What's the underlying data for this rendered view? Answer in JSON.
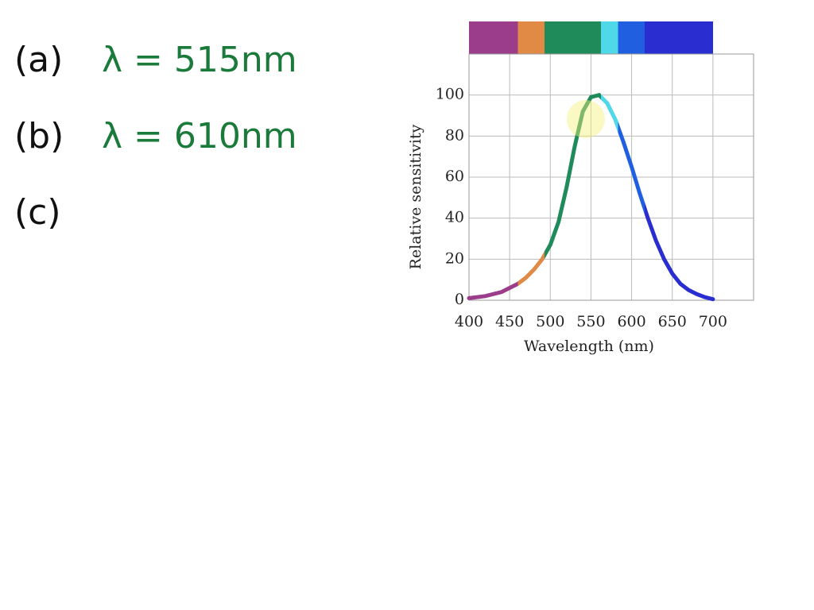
{
  "notes": [
    {
      "label": "(a)",
      "text": "λ = 515nm"
    },
    {
      "label": "(b)",
      "text": "λ = 610nm"
    },
    {
      "label": "(c)"
    }
  ],
  "chart_data": {
    "type": "line",
    "x_label": "Wavelength (nm)",
    "y_label": "Relative sensitivity",
    "x": [
      400,
      420,
      440,
      460,
      470,
      480,
      490,
      500,
      510,
      520,
      530,
      540,
      550,
      560,
      570,
      580,
      590,
      600,
      610,
      620,
      630,
      640,
      650,
      660,
      670,
      680,
      690,
      700
    ],
    "values": [
      1,
      2,
      4,
      8,
      11,
      15,
      20,
      27,
      38,
      55,
      75,
      92,
      99,
      100,
      96,
      88,
      77,
      65,
      52,
      40,
      29,
      20,
      13,
      8,
      5,
      3,
      1.5,
      0.5
    ],
    "xlim": [
      400,
      750
    ],
    "ylim": [
      0,
      120
    ],
    "xticks": [
      400,
      450,
      500,
      550,
      600,
      650,
      700
    ],
    "yticks": [
      0,
      20,
      40,
      60,
      80,
      100
    ],
    "grid": true
  }
}
